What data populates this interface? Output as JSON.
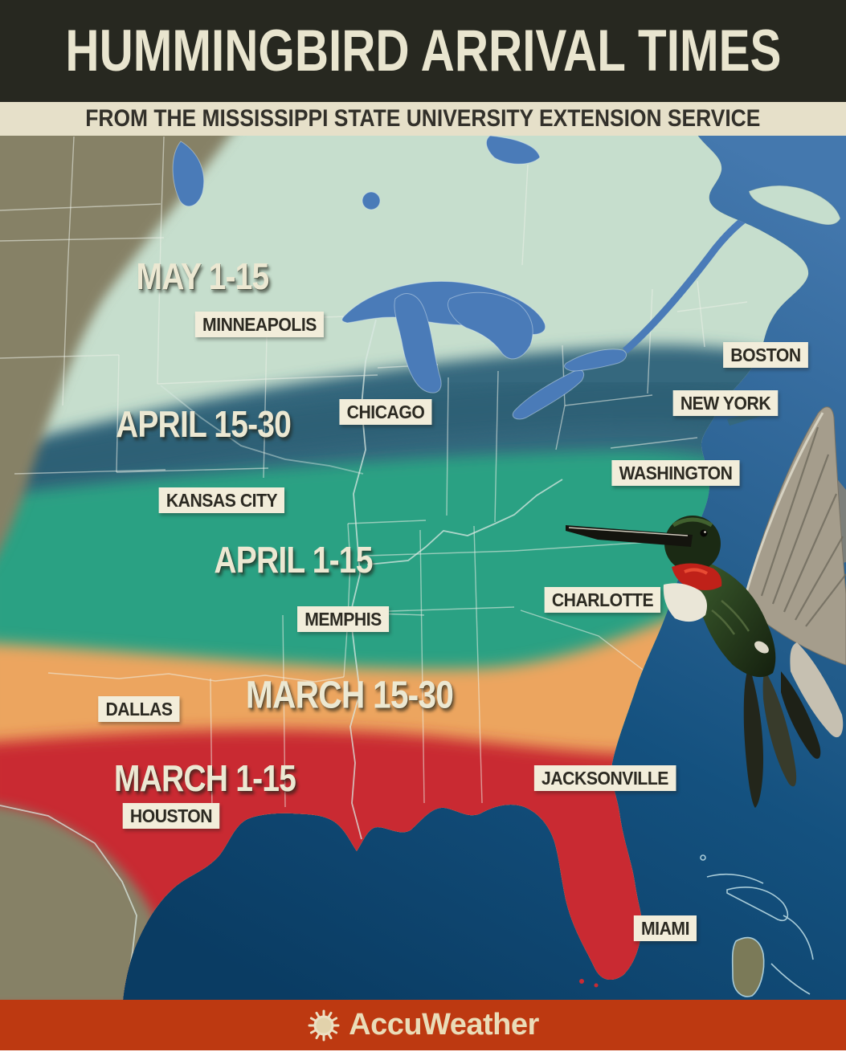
{
  "header": {
    "title": "HUMMINGBIRD ARRIVAL TIMES",
    "subtitle": "FROM THE MISSISSIPPI STATE UNIVERSITY EXTENSION SERVICE"
  },
  "map": {
    "bands": [
      {
        "label": "MAY 1-15",
        "color": "#c6decd"
      },
      {
        "label": "APRIL 15-30",
        "color": "#35687e"
      },
      {
        "label": "APRIL 1-15",
        "color": "#2aa183"
      },
      {
        "label": "MARCH 15-30",
        "color": "#eca55f"
      },
      {
        "label": "MARCH 1-15",
        "color": "#c92b33"
      }
    ],
    "cities": [
      {
        "name": "MINNEAPOLIS"
      },
      {
        "name": "BOSTON"
      },
      {
        "name": "CHICAGO"
      },
      {
        "name": "NEW YORK"
      },
      {
        "name": "WASHINGTON"
      },
      {
        "name": "KANSAS CITY"
      },
      {
        "name": "CHARLOTTE"
      },
      {
        "name": "MEMPHIS"
      },
      {
        "name": "DALLAS"
      },
      {
        "name": "JACKSONVILLE"
      },
      {
        "name": "HOUSTON"
      },
      {
        "name": "MIAMI"
      }
    ],
    "illustration": "ruby-throated-hummingbird"
  },
  "footer": {
    "brand": "AccuWeather",
    "icon": "sun-icon"
  },
  "colors": {
    "header_bg": "#272820",
    "header_text": "#e9e5cf",
    "subtitle_bg": "#e6e0c9",
    "subtitle_text": "#32302a",
    "land": "#868166",
    "lake": "#4a7bb8",
    "ocean_top": "#4478ae",
    "ocean_mid": "#14517f",
    "ocean_deep": "#0a3c63",
    "label_bg": "#f2edda",
    "label_text": "#2c2a22",
    "band_label_text": "#ece8d2",
    "footer_bg": "#bd3911",
    "footer_text": "#eadcb8"
  }
}
